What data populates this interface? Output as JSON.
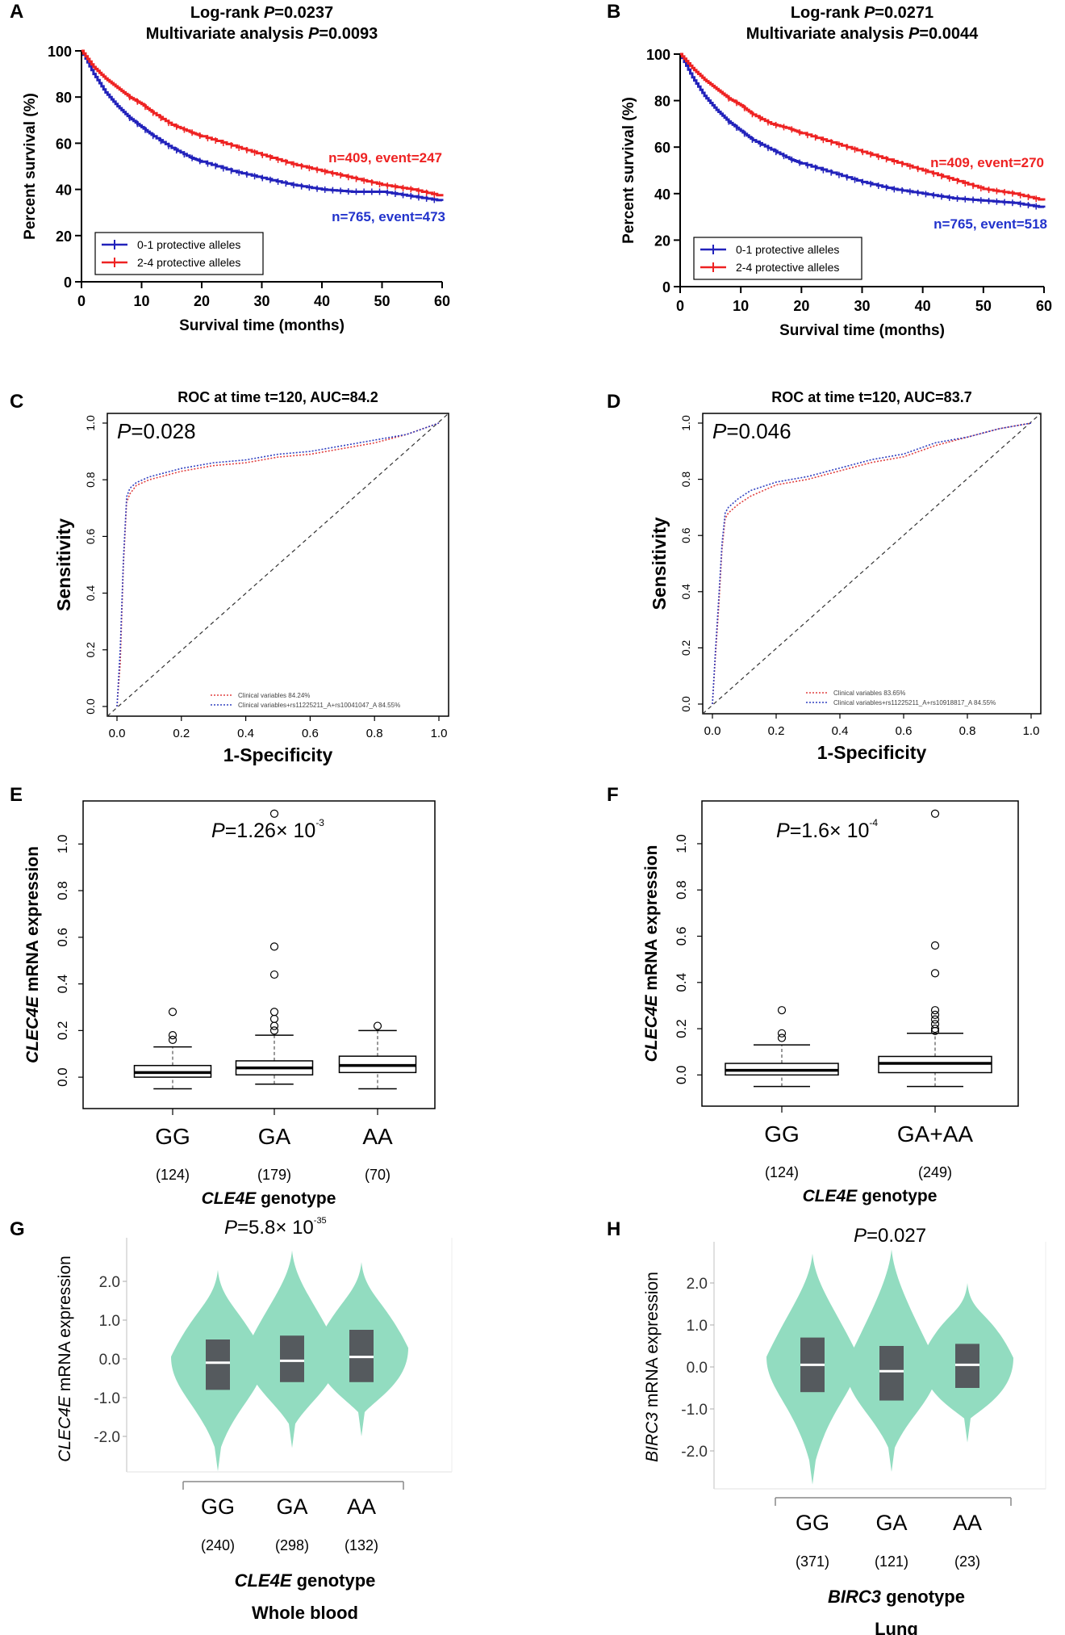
{
  "chart_data": [
    {
      "panel": "A",
      "type": "line",
      "subtype": "kaplan-meier",
      "title": "Log-rank P=0.0237",
      "title_line1_prefix": "Log-rank ",
      "title_line1_p": "P",
      "title_line1_value": "=0.0237",
      "title_line2_prefix": "Multivariate analysis ",
      "title_line2_p": "P",
      "title_line2_value": "=0.0093",
      "xlabel": "Survival time (months)",
      "ylabel": "Percent survival (%)",
      "xlim": [
        0,
        60
      ],
      "ylim": [
        0,
        100
      ],
      "xticks": [
        "0",
        "10",
        "20",
        "30",
        "40",
        "50",
        "60"
      ],
      "yticks": [
        "0",
        "20",
        "40",
        "60",
        "80",
        "100"
      ],
      "legend": [
        "0-1 protective alleles",
        "2-4 protective alleles"
      ],
      "annotations": [
        "n=409, event=247",
        "n=765, event=473"
      ],
      "series": [
        {
          "name": "0-1 protective alleles",
          "color": "#2222bb",
          "x": [
            0,
            2,
            4,
            6,
            8,
            10,
            12,
            15,
            18,
            20,
            25,
            30,
            35,
            40,
            45,
            50,
            55,
            60
          ],
          "y": [
            100,
            90,
            82,
            76,
            71,
            67,
            63,
            58,
            54,
            52,
            48,
            45,
            42,
            40,
            39,
            39,
            37,
            35
          ]
        },
        {
          "name": "2-4 protective alleles",
          "color": "#ee2222",
          "x": [
            0,
            2,
            4,
            6,
            8,
            10,
            12,
            15,
            18,
            20,
            25,
            30,
            35,
            40,
            45,
            50,
            55,
            60
          ],
          "y": [
            100,
            93,
            88,
            84,
            80,
            77,
            73,
            68,
            65,
            63,
            59,
            55,
            51,
            48,
            45,
            42,
            40,
            37
          ]
        }
      ]
    },
    {
      "panel": "B",
      "type": "line",
      "subtype": "kaplan-meier",
      "title_line1_prefix": "Log-rank ",
      "title_line1_p": "P",
      "title_line1_value": "=0.0271",
      "title_line2_prefix": "Multivariate analysis ",
      "title_line2_p": "P",
      "title_line2_value": "=0.0044",
      "xlabel": "Survival time (months)",
      "ylabel": "Percent survival (%)",
      "xlim": [
        0,
        60
      ],
      "ylim": [
        0,
        100
      ],
      "xticks": [
        "0",
        "10",
        "20",
        "30",
        "40",
        "50",
        "60"
      ],
      "yticks": [
        "0",
        "20",
        "40",
        "60",
        "80",
        "100"
      ],
      "legend": [
        "0-1 protective alleles",
        "2-4 protective alleles"
      ],
      "annotations": [
        "n=409, event=270",
        "n=765, event=518"
      ],
      "series": [
        {
          "name": "0-1 protective alleles",
          "color": "#2222bb",
          "x": [
            0,
            2,
            4,
            6,
            8,
            10,
            12,
            15,
            18,
            20,
            25,
            30,
            35,
            40,
            45,
            50,
            55,
            60
          ],
          "y": [
            100,
            90,
            82,
            76,
            71,
            67,
            63,
            59,
            55,
            53,
            49,
            45,
            42,
            40,
            38,
            37,
            36,
            34
          ]
        },
        {
          "name": "2-4 protective alleles",
          "color": "#ee2222",
          "x": [
            0,
            2,
            4,
            6,
            8,
            10,
            12,
            15,
            18,
            20,
            25,
            30,
            35,
            40,
            45,
            50,
            55,
            60
          ],
          "y": [
            100,
            94,
            89,
            85,
            81,
            78,
            74,
            70,
            68,
            66,
            62,
            58,
            54,
            50,
            46,
            42,
            40,
            37
          ]
        }
      ]
    },
    {
      "panel": "C",
      "type": "line",
      "subtype": "roc",
      "title": "ROC at time t=120, AUC=84.2",
      "p_label": "P",
      "p_value": "=0.028",
      "xlabel": "1-Specificity",
      "ylabel": "Sensitivity",
      "xlim": [
        0,
        1
      ],
      "ylim": [
        0,
        1
      ],
      "xticks": [
        "0.0",
        "0.2",
        "0.4",
        "0.6",
        "0.8",
        "1.0"
      ],
      "yticks": [
        "0.0",
        "0.2",
        "0.4",
        "0.6",
        "0.8",
        "1.0"
      ],
      "legend": [
        "Clinical variables 84.24%",
        "Clinical variables+rs11225211_A+rs10041047_A 84.55%"
      ],
      "series": [
        {
          "name": "Clinical variables",
          "color": "#e04040",
          "x": [
            0,
            0.01,
            0.02,
            0.03,
            0.04,
            0.06,
            0.1,
            0.2,
            0.3,
            0.4,
            0.5,
            0.6,
            0.7,
            0.8,
            0.9,
            0.95,
            1
          ],
          "y": [
            0,
            0.15,
            0.5,
            0.72,
            0.75,
            0.78,
            0.8,
            0.83,
            0.85,
            0.86,
            0.88,
            0.89,
            0.91,
            0.93,
            0.96,
            0.98,
            1
          ]
        },
        {
          "name": "Clinical variables+rs11225211_A+rs10041047_A",
          "color": "#3040c0",
          "x": [
            0,
            0.01,
            0.02,
            0.03,
            0.04,
            0.06,
            0.1,
            0.2,
            0.3,
            0.4,
            0.5,
            0.6,
            0.7,
            0.8,
            0.9,
            0.95,
            1
          ],
          "y": [
            0,
            0.2,
            0.52,
            0.74,
            0.77,
            0.79,
            0.81,
            0.84,
            0.86,
            0.87,
            0.89,
            0.9,
            0.92,
            0.94,
            0.96,
            0.98,
            1
          ]
        }
      ]
    },
    {
      "panel": "D",
      "type": "line",
      "subtype": "roc",
      "title": "ROC at time t=120, AUC=83.7",
      "p_label": "P",
      "p_value": "=0.046",
      "xlabel": "1-Specificity",
      "ylabel": "Sensitivity",
      "xlim": [
        0,
        1
      ],
      "ylim": [
        0,
        1
      ],
      "xticks": [
        "0.0",
        "0.2",
        "0.4",
        "0.6",
        "0.8",
        "1.0"
      ],
      "yticks": [
        "0.0",
        "0.2",
        "0.4",
        "0.6",
        "0.8",
        "1.0"
      ],
      "legend": [
        "Clinical variables 83.65%",
        "Clinical variables+rs11225211_A+rs10918817_A 84.55%"
      ],
      "series": [
        {
          "name": "Clinical variables",
          "color": "#e04040",
          "x": [
            0,
            0.01,
            0.02,
            0.03,
            0.04,
            0.05,
            0.08,
            0.12,
            0.2,
            0.3,
            0.4,
            0.5,
            0.6,
            0.7,
            0.8,
            0.9,
            1
          ],
          "y": [
            0,
            0.18,
            0.35,
            0.55,
            0.66,
            0.68,
            0.71,
            0.74,
            0.78,
            0.8,
            0.83,
            0.86,
            0.88,
            0.92,
            0.95,
            0.98,
            1
          ]
        },
        {
          "name": "Clinical variables+rs11225211_A+rs10918817_A",
          "color": "#3040c0",
          "x": [
            0,
            0.01,
            0.02,
            0.03,
            0.04,
            0.05,
            0.08,
            0.12,
            0.2,
            0.3,
            0.4,
            0.5,
            0.6,
            0.7,
            0.8,
            0.9,
            1
          ],
          "y": [
            0,
            0.2,
            0.38,
            0.57,
            0.68,
            0.7,
            0.73,
            0.76,
            0.79,
            0.81,
            0.84,
            0.87,
            0.89,
            0.93,
            0.95,
            0.98,
            1
          ]
        }
      ]
    },
    {
      "panel": "E",
      "type": "box",
      "p_label": "P",
      "p_value": "=1.26× 10",
      "p_exp": "-3",
      "ylabel_gene": "CLEC4E",
      "ylabel_rest": " mRNA expression",
      "xlabel_gene": "CLE4E",
      "xlabel_rest": " genotype",
      "yticks": [
        "0.0",
        "0.2",
        "0.4",
        "0.6",
        "0.8",
        "1.0"
      ],
      "ylim": [
        -0.1,
        1.15
      ],
      "categories": [
        "GG",
        "GA",
        "AA"
      ],
      "counts": [
        "(124)",
        "(179)",
        "(70)"
      ],
      "boxes": [
        {
          "q1": 0.0,
          "median": 0.02,
          "q3": 0.05,
          "lo": -0.05,
          "hi": 0.13,
          "outliers": [
            0.16,
            0.18,
            0.28
          ]
        },
        {
          "q1": 0.01,
          "median": 0.04,
          "q3": 0.07,
          "lo": -0.03,
          "hi": 0.18,
          "outliers": [
            0.2,
            0.22,
            0.25,
            0.28,
            0.44,
            0.56,
            1.13
          ]
        },
        {
          "q1": 0.02,
          "median": 0.05,
          "q3": 0.09,
          "lo": -0.05,
          "hi": 0.2,
          "outliers": [
            0.22
          ]
        }
      ]
    },
    {
      "panel": "F",
      "type": "box",
      "p_label": "P",
      "p_value": "=1.6× 10",
      "p_exp": "-4",
      "ylabel_gene": "CLEC4E",
      "ylabel_rest": " mRNA expression",
      "xlabel_gene": "CLE4E",
      "xlabel_rest": " genotype",
      "yticks": [
        "0.0",
        "0.2",
        "0.4",
        "0.6",
        "0.8",
        "1.0"
      ],
      "ylim": [
        -0.1,
        1.15
      ],
      "categories": [
        "GG",
        "GA+AA"
      ],
      "counts": [
        "(124)",
        "(249)"
      ],
      "boxes": [
        {
          "q1": 0.0,
          "median": 0.02,
          "q3": 0.05,
          "lo": -0.05,
          "hi": 0.13,
          "outliers": [
            0.16,
            0.18,
            0.28
          ]
        },
        {
          "q1": 0.01,
          "median": 0.05,
          "q3": 0.08,
          "lo": -0.05,
          "hi": 0.18,
          "outliers": [
            0.19,
            0.2,
            0.22,
            0.24,
            0.26,
            0.28,
            0.44,
            0.56,
            1.13
          ]
        }
      ]
    },
    {
      "panel": "G",
      "type": "violin",
      "p_label": "P",
      "p_value": "=5.8× 10",
      "p_exp": "-35",
      "ylabel_gene": "CLEC4E",
      "ylabel_rest": " mRNA expression",
      "xlabel_gene": "CLE4E",
      "xlabel_rest": " genotype",
      "tissue": "Whole blood",
      "yticks": [
        "2.0",
        "1.0",
        "0.0",
        "-1.0",
        "-2.0"
      ],
      "ylim": [
        -3.0,
        3.0
      ],
      "categories": [
        "GG",
        "GA",
        "AA"
      ],
      "counts": [
        "(240)",
        "(298)",
        "(132)"
      ],
      "violins": [
        {
          "min": -2.9,
          "max": 2.3,
          "q1": -0.8,
          "median": -0.1,
          "q3": 0.5
        },
        {
          "min": -2.3,
          "max": 2.8,
          "q1": -0.6,
          "median": -0.05,
          "q3": 0.6
        },
        {
          "min": -2.0,
          "max": 2.5,
          "q1": -0.6,
          "median": 0.05,
          "q3": 0.75
        }
      ]
    },
    {
      "panel": "H",
      "type": "violin",
      "p_label": "P",
      "p_value": "=0.027",
      "ylabel_gene": "BIRC3",
      "ylabel_rest": " mRNA expression",
      "xlabel_gene": "BIRC3",
      "xlabel_rest": " genotype",
      "tissue": "Lung",
      "yticks": [
        "2.0",
        "1.0",
        "0.0",
        "-1.0",
        "-2.0"
      ],
      "ylim": [
        -3.0,
        3.0
      ],
      "categories": [
        "GG",
        "GA",
        "AA"
      ],
      "counts": [
        "(371)",
        "(121)",
        "(23)"
      ],
      "violins": [
        {
          "min": -2.8,
          "max": 2.7,
          "q1": -0.6,
          "median": 0.05,
          "q3": 0.7
        },
        {
          "min": -2.5,
          "max": 2.8,
          "q1": -0.8,
          "median": -0.1,
          "q3": 0.5
        },
        {
          "min": -1.8,
          "max": 2.0,
          "q1": -0.5,
          "median": 0.05,
          "q3": 0.55
        }
      ]
    }
  ],
  "panel_letters": [
    "A",
    "B",
    "C",
    "D",
    "E",
    "F",
    "G",
    "H"
  ]
}
